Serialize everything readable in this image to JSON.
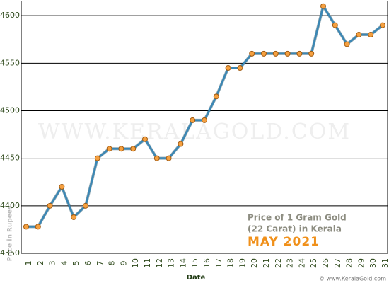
{
  "chart_data": {
    "type": "line",
    "title": "Price of 1 Gram Gold",
    "subtitle": "(22 Carat) in Kerala",
    "period": "MAY 2021",
    "watermark": "WWW.KERALAGOLD.COM",
    "credit": "© www.KeralaGold.com",
    "x_label": "Date",
    "y_label": "Price in Rupees",
    "categories": [
      "1",
      "2",
      "3",
      "4",
      "5",
      "6",
      "7",
      "8",
      "9",
      "10",
      "11",
      "12",
      "13",
      "14",
      "15",
      "16",
      "17",
      "18",
      "19",
      "20",
      "21",
      "22",
      "23",
      "24",
      "25",
      "26",
      "27",
      "28",
      "29",
      "30",
      "31"
    ],
    "series": [
      {
        "name": "Price",
        "color": "#3a87b5",
        "values": [
          4378,
          4378,
          4400,
          4420,
          4388,
          4400,
          4450,
          4460,
          4460,
          4460,
          4470,
          4450,
          4450,
          4465,
          4490,
          4490,
          4515,
          4545,
          4545,
          4560,
          4560,
          4560,
          4560,
          4560,
          4560,
          4610,
          4590,
          4570,
          4580,
          4580,
          4590
        ]
      }
    ],
    "marker_color": "#f5a040",
    "ylim": [
      4350,
      4615
    ],
    "yticks": [
      4350,
      4400,
      4450,
      4500,
      4550,
      4600
    ],
    "grid": true
  }
}
